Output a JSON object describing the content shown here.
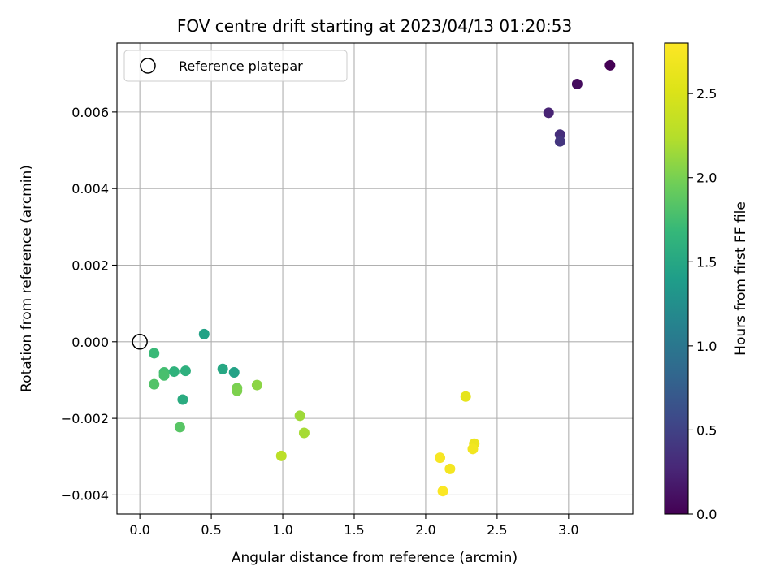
{
  "chart_data": {
    "type": "scatter",
    "title": "FOV centre drift starting at 2023/04/13 01:20:53",
    "xlabel": "Angular distance from reference (arcmin)",
    "ylabel": "Rotation from reference (arcmin)",
    "xlim": [
      -0.16,
      3.45
    ],
    "ylim": [
      -0.0045,
      0.0078
    ],
    "grid": true,
    "legend": {
      "placement": "top-left",
      "entries": [
        "Reference platepar"
      ]
    },
    "x_ticks": [
      0.0,
      0.5,
      1.0,
      1.5,
      2.0,
      2.5,
      3.0
    ],
    "x_tick_labels": [
      "0.0",
      "0.5",
      "1.0",
      "1.5",
      "2.0",
      "2.5",
      "3.0"
    ],
    "y_ticks": [
      -0.004,
      -0.002,
      0.0,
      0.002,
      0.004,
      0.006
    ],
    "y_tick_labels": [
      "−0.004",
      "−0.002",
      "0.000",
      "0.002",
      "0.004",
      "0.006"
    ],
    "colorbar": {
      "label": "Hours from first FF file",
      "min": 0.0,
      "max": 2.8,
      "colormap": "viridis",
      "ticks": [
        0.0,
        0.5,
        1.0,
        1.5,
        2.0,
        2.5
      ],
      "tick_labels": [
        "0.0",
        "0.5",
        "1.0",
        "1.5",
        "2.0",
        "2.5"
      ]
    },
    "reference_point": {
      "name": "Reference platepar",
      "x": 0.0,
      "y": 0.0
    },
    "series": [
      {
        "points": [
          {
            "x": 3.29,
            "y": 0.00722,
            "c": 0.0
          },
          {
            "x": 3.06,
            "y": 0.00673,
            "c": 0.08
          },
          {
            "x": 2.86,
            "y": 0.00598,
            "c": 0.25
          },
          {
            "x": 2.94,
            "y": 0.00541,
            "c": 0.33
          },
          {
            "x": 2.94,
            "y": 0.00523,
            "c": 0.4
          },
          {
            "x": 0.45,
            "y": 0.0002,
            "c": 1.45
          },
          {
            "x": 0.58,
            "y": -0.00071,
            "c": 1.5
          },
          {
            "x": 0.66,
            "y": -0.0008,
            "c": 1.45
          },
          {
            "x": 0.3,
            "y": -0.00151,
            "c": 1.55
          },
          {
            "x": 0.32,
            "y": -0.00076,
            "c": 1.6
          },
          {
            "x": 0.24,
            "y": -0.00078,
            "c": 1.62
          },
          {
            "x": 0.1,
            "y": -0.0003,
            "c": 1.7
          },
          {
            "x": 0.17,
            "y": -0.0008,
            "c": 1.75
          },
          {
            "x": 0.17,
            "y": -0.00088,
            "c": 1.78
          },
          {
            "x": 0.1,
            "y": -0.00111,
            "c": 1.82
          },
          {
            "x": 0.28,
            "y": -0.00223,
            "c": 1.85
          },
          {
            "x": 0.68,
            "y": -0.00121,
            "c": 2.0
          },
          {
            "x": 0.68,
            "y": -0.00128,
            "c": 2.02
          },
          {
            "x": 0.82,
            "y": -0.00113,
            "c": 2.08
          },
          {
            "x": 1.12,
            "y": -0.00193,
            "c": 2.15
          },
          {
            "x": 1.15,
            "y": -0.00238,
            "c": 2.18
          },
          {
            "x": 0.99,
            "y": -0.00298,
            "c": 2.28
          },
          {
            "x": 2.28,
            "y": -0.00143,
            "c": 2.6
          },
          {
            "x": 2.34,
            "y": -0.00266,
            "c": 2.65
          },
          {
            "x": 2.33,
            "y": -0.0028,
            "c": 2.7
          },
          {
            "x": 2.17,
            "y": -0.00332,
            "c": 2.72
          },
          {
            "x": 2.1,
            "y": -0.00303,
            "c": 2.75
          },
          {
            "x": 2.12,
            "y": -0.0039,
            "c": 2.78
          }
        ]
      }
    ]
  }
}
